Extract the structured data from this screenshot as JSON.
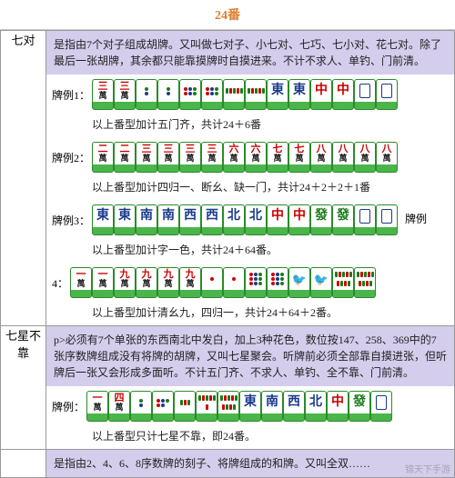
{
  "title": "24番",
  "colors": {
    "header_text": "#e08030",
    "desc_bg": "#d4cdec",
    "tile_border": "#2a8a2a",
    "tile_base": "#4ab54a",
    "text": "#222222",
    "red": "#c00000",
    "green": "#1a7a1a",
    "blue": "#1a3a8a"
  },
  "sections": [
    {
      "label": "七对",
      "desc": "是指由7个对子组成胡牌。又叫做七对子、小七对、七巧、七小对、花七对。除了最后一张胡牌，其余都只能靠摸牌时自摸进来。不计不求人、单钓、门前清。",
      "examples": [
        {
          "row_label": "牌例1：",
          "tiles": [
            {
              "t": "wan",
              "v": "三"
            },
            {
              "t": "wan",
              "v": "三"
            },
            {
              "t": "dot",
              "v": 2
            },
            {
              "t": "dot",
              "v": 2
            },
            {
              "t": "dot",
              "v": 6
            },
            {
              "t": "dot",
              "v": 6
            },
            {
              "t": "bam",
              "v": 5
            },
            {
              "t": "bam",
              "v": 5
            },
            {
              "t": "wind",
              "v": "東",
              "c": "blue"
            },
            {
              "t": "wind",
              "v": "東",
              "c": "blue"
            },
            {
              "t": "dragon",
              "v": "中",
              "c": "red"
            },
            {
              "t": "dragon",
              "v": "中",
              "c": "red"
            },
            {
              "t": "dragon",
              "v": "",
              "c": "red"
            },
            {
              "t": "dragon",
              "v": "",
              "c": "red"
            }
          ],
          "note": "以上番型加计五门齐，共计24＋6番"
        },
        {
          "row_label": "牌例2：",
          "tiles": [
            {
              "t": "wan",
              "v": "二"
            },
            {
              "t": "wan",
              "v": "二"
            },
            {
              "t": "wan",
              "v": "三"
            },
            {
              "t": "wan",
              "v": "三"
            },
            {
              "t": "wan",
              "v": "三"
            },
            {
              "t": "wan",
              "v": "三"
            },
            {
              "t": "wan",
              "v": "六"
            },
            {
              "t": "wan",
              "v": "六"
            },
            {
              "t": "wan",
              "v": "七"
            },
            {
              "t": "wan",
              "v": "七"
            },
            {
              "t": "wan",
              "v": "八"
            },
            {
              "t": "wan",
              "v": "八"
            },
            {
              "t": "wan",
              "v": "八"
            },
            {
              "t": "wan",
              "v": "八"
            }
          ],
          "note": "以上番型加计四归一、断幺、缺一门，共计24＋2＋2＋1番"
        },
        {
          "row_label": "牌例3：",
          "tiles": [
            {
              "t": "wind",
              "v": "東",
              "c": "blue"
            },
            {
              "t": "wind",
              "v": "東",
              "c": "blue"
            },
            {
              "t": "wind",
              "v": "南",
              "c": "blue"
            },
            {
              "t": "wind",
              "v": "南",
              "c": "blue"
            },
            {
              "t": "wind",
              "v": "西",
              "c": "blue"
            },
            {
              "t": "wind",
              "v": "西",
              "c": "blue"
            },
            {
              "t": "wind",
              "v": "北",
              "c": "blue"
            },
            {
              "t": "wind",
              "v": "北",
              "c": "blue"
            },
            {
              "t": "dragon",
              "v": "中",
              "c": "red"
            },
            {
              "t": "dragon",
              "v": "中",
              "c": "red"
            },
            {
              "t": "dragon",
              "v": "發",
              "c": "green"
            },
            {
              "t": "dragon",
              "v": "發",
              "c": "green"
            },
            {
              "t": "dragon",
              "v": "",
              "c": "red"
            },
            {
              "t": "dragon",
              "v": "",
              "c": "red"
            }
          ],
          "note": "以上番型加计字一色，共计24＋64番。",
          "trailing": "牌例"
        },
        {
          "row_label": "4：",
          "tiles": [
            {
              "t": "wan",
              "v": "一"
            },
            {
              "t": "wan",
              "v": "一"
            },
            {
              "t": "wan",
              "v": "九"
            },
            {
              "t": "wan",
              "v": "九"
            },
            {
              "t": "wan",
              "v": "九"
            },
            {
              "t": "wan",
              "v": "九"
            },
            {
              "t": "dot",
              "v": 1
            },
            {
              "t": "dot",
              "v": 1
            },
            {
              "t": "dot",
              "v": 9
            },
            {
              "t": "dot",
              "v": 9
            },
            {
              "t": "bam",
              "v": 1
            },
            {
              "t": "bam",
              "v": 1
            },
            {
              "t": "bam",
              "v": 9
            },
            {
              "t": "bam",
              "v": 9
            }
          ],
          "note": "以上番型加计清幺九，四归一，共计24＋64＋2番。"
        }
      ]
    },
    {
      "label": "七星不靠",
      "desc": "p>必须有7个单张的东西南北中发白，加上3种花色，数位按147、258、369中的7张序数牌组成没有将牌的胡牌，又叫七星聚会。听牌前必须全部靠自摸进张，但听牌后一张又会形成多面听。不计五门齐、不求人、单钓、全不靠、门前清。",
      "examples": [
        {
          "row_label": "牌例：",
          "tiles": [
            {
              "t": "wan",
              "v": "一"
            },
            {
              "t": "wan",
              "v": "四"
            },
            {
              "t": "dot",
              "v": 2
            },
            {
              "t": "dot",
              "v": 5
            },
            {
              "t": "bam",
              "v": 3
            },
            {
              "t": "bam",
              "v": 6
            },
            {
              "t": "bam",
              "v": 9
            },
            {
              "t": "wind",
              "v": "東",
              "c": "blue"
            },
            {
              "t": "wind",
              "v": "南",
              "c": "blue"
            },
            {
              "t": "wind",
              "v": "西",
              "c": "blue"
            },
            {
              "t": "wind",
              "v": "北",
              "c": "blue"
            },
            {
              "t": "dragon",
              "v": "中",
              "c": "red"
            },
            {
              "t": "dragon",
              "v": "發",
              "c": "green"
            },
            {
              "t": "dragon",
              "v": "",
              "c": "red"
            }
          ],
          "note": "以上番型只计七星不靠，即24番。"
        }
      ]
    },
    {
      "label": "",
      "desc": "是指由2、4、6、8序数牌的刻子、将牌组成的和牌。又叫全双……",
      "examples": []
    }
  ],
  "watermark": "锦天下手游"
}
